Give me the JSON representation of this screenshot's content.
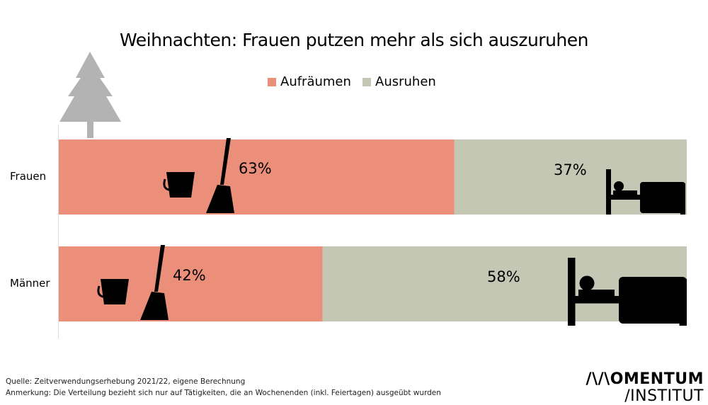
{
  "chart_data": {
    "type": "bar",
    "stacked": true,
    "orientation": "horizontal",
    "title": "Weihnachten: Frauen putzen mehr als sich auszuruhen",
    "categories": [
      "Frauen",
      "Männer"
    ],
    "series": [
      {
        "name": "Aufräumen",
        "values": [
          63,
          42
        ],
        "labels": [
          "63%",
          "42%"
        ],
        "color": "#EC8F7A"
      },
      {
        "name": "Ausruhen",
        "values": [
          37,
          58
        ],
        "labels": [
          "37%",
          "58%"
        ],
        "color": "#C5C7B5"
      }
    ],
    "xlim": [
      0,
      100
    ],
    "legend": "top-center"
  },
  "icons": [
    "tree-icon",
    "bucket-icon",
    "broom-icon",
    "bed-icon"
  ],
  "footer": {
    "source": "Quelle: Zeitverwendungserhebung 2021/22, eigene Berechnung",
    "note": "Anmerkung: Die Verteilung bezieht sich nur auf Tätigkeiten, die an Wochenenden (inkl. Feiertagen) ausgeübt wurden"
  },
  "logo": {
    "line1": "/\\/\\OMENTUM",
    "line2": "/INSTITUT"
  }
}
